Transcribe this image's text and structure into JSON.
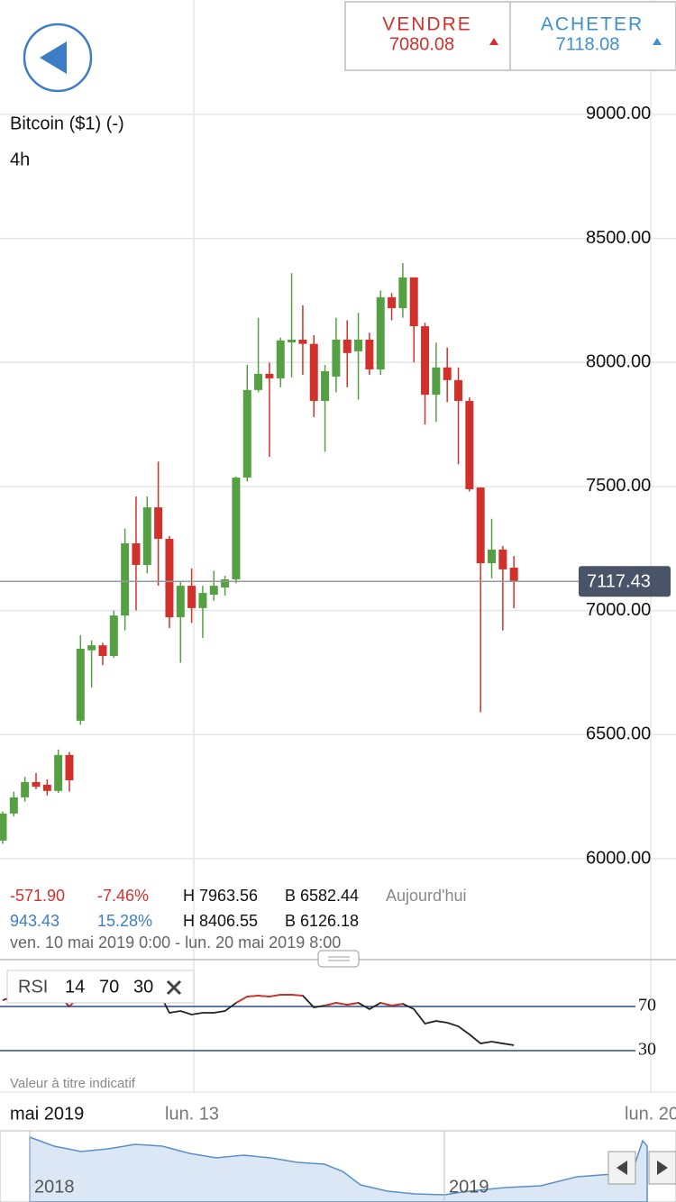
{
  "header": {
    "sell_label": "VENDRE",
    "sell_price": "7080.08",
    "buy_label": "ACHETER",
    "buy_price": "7118.08"
  },
  "chart_data": [
    {
      "type": "candlestick",
      "title": "Bitcoin ($1) (-)",
      "subtitle": "4h",
      "open": [
        6073,
        6182,
        6247,
        6309,
        6298,
        6273,
        6418,
        6556,
        6840,
        6860,
        6817,
        6980,
        7271,
        7184,
        7416,
        7289,
        6973,
        7100,
        7010,
        7064,
        7093,
        7126,
        7536,
        7889,
        7954,
        7936,
        8081,
        8092,
        8075,
        7845,
        7943,
        8092,
        8045,
        8092,
        7972,
        8263,
        8219,
        8343,
        8146,
        7870,
        7980,
        7929,
        7845,
        7496,
        7191,
        7246,
        7173
      ],
      "close": [
        6182,
        6247,
        6309,
        6290,
        6273,
        6418,
        6316,
        6846,
        6860,
        6817,
        6980,
        7271,
        7184,
        7416,
        7289,
        6973,
        7100,
        7010,
        7071,
        7100,
        7126,
        7536,
        7889,
        7954,
        7936,
        8089,
        8092,
        8075,
        7845,
        7965,
        8092,
        8038,
        8092,
        7972,
        8263,
        8219,
        8343,
        8146,
        7870,
        7980,
        7929,
        7845,
        7489,
        7191,
        7246,
        7166,
        7119
      ],
      "high": [
        6190,
        6270,
        6330,
        6345,
        6320,
        6440,
        6430,
        6900,
        6880,
        6870,
        7000,
        7330,
        7460,
        7460,
        7600,
        7300,
        7120,
        7170,
        7100,
        7160,
        7140,
        7540,
        7990,
        8180,
        8000,
        8100,
        8360,
        8230,
        8110,
        7990,
        8180,
        8170,
        8200,
        8120,
        8290,
        8280,
        8400,
        8343,
        8160,
        8080,
        8060,
        7980,
        7860,
        7496,
        7370,
        7260,
        7220
      ],
      "low": [
        6060,
        6170,
        6230,
        6280,
        6255,
        6265,
        6270,
        6540,
        6690,
        6780,
        6810,
        6920,
        7000,
        7150,
        7100,
        6930,
        6790,
        6950,
        6890,
        7040,
        7060,
        7110,
        7520,
        7880,
        7620,
        7900,
        7940,
        7950,
        7780,
        7640,
        7880,
        7900,
        7850,
        7950,
        7950,
        8170,
        8180,
        8000,
        7750,
        7760,
        7840,
        7590,
        7480,
        6590,
        7130,
        6920,
        7010
      ],
      "up_color": "#55a043",
      "down_color": "#d2312b",
      "ylim": [
        5920,
        9461
      ],
      "yticks": [
        {
          "value": 6000,
          "label": "6000.00"
        },
        {
          "value": 6500,
          "label": "6500.00"
        },
        {
          "value": 7000,
          "label": "7000.00"
        },
        {
          "value": 7500,
          "label": "7500.00"
        },
        {
          "value": 8000,
          "label": "8000.00"
        },
        {
          "value": 8500,
          "label": "8500.00"
        },
        {
          "value": 9000,
          "label": "9000.00"
        }
      ],
      "grid": true,
      "current_price": {
        "value": 7117.43,
        "label": "7117.43"
      }
    },
    {
      "type": "line",
      "title": "RSI",
      "params": [
        14,
        70,
        30
      ],
      "series": [
        {
          "color": "#222222",
          "values": [
            75.7,
            79.0,
            80.6,
            81.4,
            79.0,
            79.8,
            70,
            79.8,
            81.4,
            80.6,
            79.0,
            80.6,
            81.4,
            83.9,
            83.9,
            64.3,
            65.9,
            62.7,
            64.3,
            64.3,
            65.9,
            73.3,
            79.0,
            79.8,
            79.0,
            80.6,
            80.6,
            79.8,
            69.2,
            70.8,
            73.3,
            71.6,
            73.3,
            67.6,
            73.3,
            70.8,
            72.4,
            67.6,
            54.5,
            56.9,
            55.3,
            52.0,
            44.7,
            36.5,
            38.2,
            36.5,
            34.9
          ]
        }
      ],
      "above_color": "#d2312b",
      "ylim": [
        -5.9,
        104.3
      ],
      "yticks": [
        70,
        30
      ]
    }
  ],
  "stats": {
    "rows": [
      [
        "-571.90",
        "-7.46%",
        "H 7963.56",
        "B 6582.44",
        "Aujourd'hui"
      ],
      [
        "943.43",
        "15.28%",
        "H 8406.55",
        "B 6126.18"
      ]
    ],
    "range": "ven. 10 mai 2019 0:00 - lun. 20 mai 2019 8:00"
  },
  "note": "Valeur à titre indicatif",
  "time_axis": {
    "period": "mai 2019",
    "labels": [
      "lun. 13",
      "lun. 20"
    ]
  },
  "navigator": {
    "labels": [
      "2018",
      "2019"
    ]
  }
}
